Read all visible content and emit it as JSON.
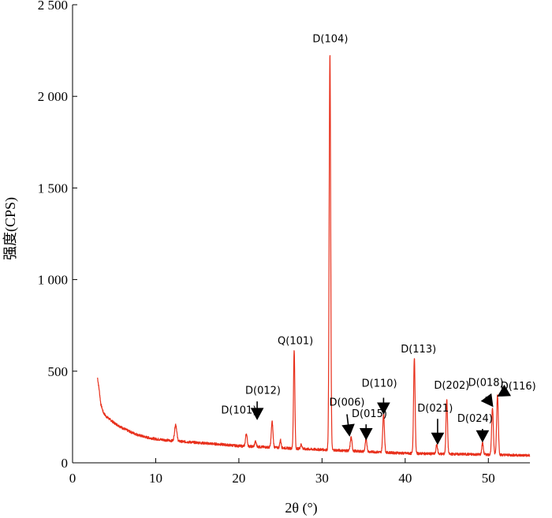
{
  "chart_data": {
    "type": "line",
    "title": "",
    "xlabel": "2θ (°)",
    "ylabel": "强度(CPS)",
    "xlim": [
      0,
      55
    ],
    "ylim": [
      0,
      2500
    ],
    "x_ticks": [
      0,
      10,
      20,
      30,
      40,
      50
    ],
    "y_ticks": [
      0,
      500,
      1000,
      1500,
      2000,
      2500
    ],
    "x_tick_labels": [
      "0",
      "10",
      "20",
      "30",
      "40",
      "50"
    ],
    "y_tick_labels": [
      "0",
      "500",
      "1 000",
      "1 500",
      "2 000",
      "2 500"
    ],
    "grid": false,
    "legend": "none",
    "series_color": "#e8301c",
    "baseline": [
      [
        3.0,
        465
      ],
      [
        3.2,
        400
      ],
      [
        3.4,
        320
      ],
      [
        3.7,
        275
      ],
      [
        4.0,
        255
      ],
      [
        5.0,
        218
      ],
      [
        6.0,
        190
      ],
      [
        7.0,
        168
      ],
      [
        8.0,
        150
      ],
      [
        9.0,
        138
      ],
      [
        10.0,
        130
      ],
      [
        12.0,
        120
      ],
      [
        15.0,
        110
      ],
      [
        18.0,
        100
      ],
      [
        20.0,
        92
      ],
      [
        22.0,
        88
      ],
      [
        25.0,
        82
      ],
      [
        28.0,
        75
      ],
      [
        30.0,
        72
      ],
      [
        32.0,
        68
      ],
      [
        35.0,
        62
      ],
      [
        38.0,
        56
      ],
      [
        40.0,
        52
      ],
      [
        45.0,
        48
      ],
      [
        50.0,
        45
      ],
      [
        55.0,
        40
      ]
    ],
    "peaks": [
      {
        "x": 12.4,
        "y": 210,
        "w": 0.13
      },
      {
        "x": 20.9,
        "y": 160,
        "w": 0.1
      },
      {
        "x": 22.0,
        "y": 115,
        "w": 0.1
      },
      {
        "x": 24.0,
        "y": 225,
        "w": 0.1
      },
      {
        "x": 25.0,
        "y": 125,
        "w": 0.08
      },
      {
        "x": 26.65,
        "y": 620,
        "w": 0.08
      },
      {
        "x": 27.5,
        "y": 100,
        "w": 0.1
      },
      {
        "x": 30.95,
        "y": 2230,
        "w": 0.09
      },
      {
        "x": 33.5,
        "y": 140,
        "w": 0.1
      },
      {
        "x": 35.3,
        "y": 130,
        "w": 0.1
      },
      {
        "x": 37.4,
        "y": 270,
        "w": 0.1
      },
      {
        "x": 41.1,
        "y": 575,
        "w": 0.09
      },
      {
        "x": 43.8,
        "y": 100,
        "w": 0.09
      },
      {
        "x": 45.0,
        "y": 345,
        "w": 0.09
      },
      {
        "x": 49.3,
        "y": 110,
        "w": 0.09
      },
      {
        "x": 50.5,
        "y": 300,
        "w": 0.1
      },
      {
        "x": 51.1,
        "y": 370,
        "w": 0.1
      }
    ],
    "annotations": [
      {
        "text": "D(104)",
        "x": 31.0,
        "y": 2295
      },
      {
        "text": "Q(101)",
        "x": 26.8,
        "y": 648
      },
      {
        "text": "D(113)",
        "x": 41.6,
        "y": 603
      },
      {
        "text": "D(012)",
        "x": 22.9,
        "y": 377
      },
      {
        "text": "D(101)",
        "x": 20.0,
        "y": 268
      },
      {
        "text": "D(110)",
        "x": 36.9,
        "y": 415
      },
      {
        "text": "D(006)",
        "x": 33.0,
        "y": 313
      },
      {
        "text": "D(015)",
        "x": 35.7,
        "y": 250
      },
      {
        "text": "D(202)",
        "x": 45.6,
        "y": 405
      },
      {
        "text": "D(021)",
        "x": 43.6,
        "y": 280
      },
      {
        "text": "D(018)",
        "x": 49.7,
        "y": 420
      },
      {
        "text": "D(116)",
        "x": 53.6,
        "y": 400
      },
      {
        "text": "D(024)",
        "x": 48.4,
        "y": 223
      }
    ],
    "arrows": [
      {
        "from": [
          22.2,
          335
        ],
        "to": [
          22.2,
          240
        ]
      },
      {
        "from": [
          37.4,
          355
        ],
        "to": [
          37.4,
          270
        ]
      },
      {
        "from": [
          33.0,
          265
        ],
        "to": [
          33.3,
          150
        ]
      },
      {
        "from": [
          35.3,
          210
        ],
        "to": [
          35.3,
          130
        ]
      },
      {
        "from": [
          43.9,
          240
        ],
        "to": [
          43.9,
          105
        ]
      },
      {
        "from": [
          49.3,
          185
        ],
        "to": [
          49.3,
          118
        ]
      },
      {
        "from": [
          49.7,
          360
        ],
        "to": [
          50.5,
          310
        ]
      },
      {
        "from": [
          52.3,
          395
        ],
        "to": [
          51.2,
          365
        ]
      }
    ]
  }
}
